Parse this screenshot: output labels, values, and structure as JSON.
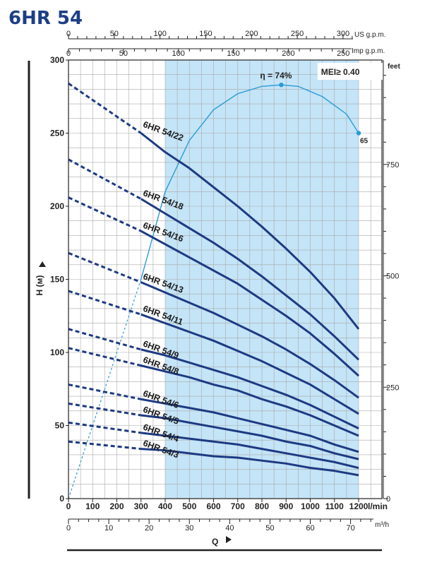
{
  "chart_data": {
    "type": "line",
    "title": "6HR 54",
    "ylabel": "H (м)",
    "xlabel": "Q",
    "x_unit": "l/min",
    "x_unit_m3h": "m³/h",
    "x_unit_usgpm": "US g.p.m.",
    "x_unit_impgpm": "Imp g.p.m.",
    "y_unit_feet": "feet",
    "ylim": [
      0,
      300
    ],
    "xlim": [
      0,
      1250
    ],
    "x_ticks": [
      0,
      100,
      200,
      300,
      400,
      500,
      600,
      700,
      800,
      900,
      1000,
      1100,
      1200
    ],
    "y_ticks": [
      0,
      50,
      100,
      150,
      200,
      250,
      300
    ],
    "feet_ticks": [
      0,
      250,
      500,
      750
    ],
    "usgpm_ticks": [
      0,
      50,
      100,
      150,
      200,
      250,
      300
    ],
    "impgpm_ticks": [
      0,
      50,
      100,
      150,
      200,
      250
    ],
    "m3h_ticks": [
      0,
      10,
      20,
      30,
      40,
      50,
      60,
      70
    ],
    "recommended_range": [
      400,
      1200
    ],
    "mei": "MEI≥ 0.40",
    "efficiency": {
      "label": "η = 74%",
      "end_label": "65",
      "peak_flow": 880,
      "points": [
        [
          0,
          0
        ],
        [
          300,
          150
        ],
        [
          400,
          210
        ],
        [
          500,
          245
        ],
        [
          600,
          266
        ],
        [
          700,
          277
        ],
        [
          800,
          282
        ],
        [
          880,
          283
        ],
        [
          950,
          282
        ],
        [
          1050,
          275
        ],
        [
          1150,
          263
        ],
        [
          1200,
          250
        ]
      ]
    },
    "series": [
      {
        "name": "6HR 54/22",
        "label_flow": 300,
        "label_head": 252,
        "points": [
          [
            0,
            284
          ],
          [
            300,
            250
          ],
          [
            400,
            237
          ],
          [
            500,
            226
          ],
          [
            600,
            213
          ],
          [
            700,
            200
          ],
          [
            800,
            186
          ],
          [
            900,
            171
          ],
          [
            1000,
            155
          ],
          [
            1100,
            137
          ],
          [
            1200,
            116
          ]
        ]
      },
      {
        "name": "6HR 54/18",
        "label_flow": 300,
        "label_head": 205,
        "points": [
          [
            0,
            232
          ],
          [
            300,
            205
          ],
          [
            400,
            195
          ],
          [
            500,
            185
          ],
          [
            600,
            175
          ],
          [
            700,
            164
          ],
          [
            800,
            152
          ],
          [
            900,
            139
          ],
          [
            1000,
            126
          ],
          [
            1100,
            111
          ],
          [
            1200,
            95
          ]
        ]
      },
      {
        "name": "6HR 54/16",
        "label_flow": 300,
        "label_head": 183,
        "points": [
          [
            0,
            206
          ],
          [
            300,
            183
          ],
          [
            400,
            174
          ],
          [
            500,
            165
          ],
          [
            600,
            156
          ],
          [
            700,
            147
          ],
          [
            800,
            136
          ],
          [
            900,
            125
          ],
          [
            1000,
            113
          ],
          [
            1100,
            99
          ],
          [
            1200,
            84
          ]
        ]
      },
      {
        "name": "6HR 54/13",
        "label_flow": 300,
        "label_head": 148,
        "points": [
          [
            0,
            168
          ],
          [
            300,
            148
          ],
          [
            400,
            141
          ],
          [
            500,
            134
          ],
          [
            600,
            127
          ],
          [
            700,
            119
          ],
          [
            800,
            111
          ],
          [
            900,
            102
          ],
          [
            1000,
            92
          ],
          [
            1100,
            81
          ],
          [
            1200,
            69
          ]
        ]
      },
      {
        "name": "6HR 54/11",
        "label_flow": 300,
        "label_head": 126,
        "points": [
          [
            0,
            142
          ],
          [
            300,
            126
          ],
          [
            400,
            120
          ],
          [
            500,
            114
          ],
          [
            600,
            108
          ],
          [
            700,
            101
          ],
          [
            800,
            94
          ],
          [
            900,
            86
          ],
          [
            1000,
            78
          ],
          [
            1100,
            68
          ],
          [
            1200,
            58
          ]
        ]
      },
      {
        "name": "6HR 54/9",
        "label_flow": 300,
        "label_head": 102,
        "points": [
          [
            0,
            116
          ],
          [
            300,
            102
          ],
          [
            400,
            98
          ],
          [
            500,
            93
          ],
          [
            600,
            88
          ],
          [
            700,
            83
          ],
          [
            800,
            77
          ],
          [
            900,
            71
          ],
          [
            1000,
            64
          ],
          [
            1100,
            56
          ],
          [
            1200,
            48
          ]
        ]
      },
      {
        "name": "6HR 54/8",
        "label_flow": 300,
        "label_head": 91,
        "points": [
          [
            0,
            103
          ],
          [
            300,
            91
          ],
          [
            400,
            87
          ],
          [
            500,
            83
          ],
          [
            600,
            78
          ],
          [
            700,
            74
          ],
          [
            800,
            68
          ],
          [
            900,
            63
          ],
          [
            1000,
            57
          ],
          [
            1100,
            50
          ],
          [
            1200,
            43
          ]
        ]
      },
      {
        "name": "6HR 54/6",
        "label_flow": 300,
        "label_head": 68,
        "points": [
          [
            0,
            78
          ],
          [
            300,
            68
          ],
          [
            400,
            65
          ],
          [
            500,
            62
          ],
          [
            600,
            59
          ],
          [
            700,
            55
          ],
          [
            800,
            51
          ],
          [
            900,
            47
          ],
          [
            1000,
            43
          ],
          [
            1100,
            37
          ],
          [
            1200,
            32
          ]
        ]
      },
      {
        "name": "6HR 54/5",
        "label_flow": 300,
        "label_head": 57,
        "points": [
          [
            0,
            65
          ],
          [
            300,
            57
          ],
          [
            400,
            55
          ],
          [
            500,
            52
          ],
          [
            600,
            49
          ],
          [
            700,
            46
          ],
          [
            800,
            43
          ],
          [
            900,
            39
          ],
          [
            1000,
            36
          ],
          [
            1100,
            31
          ],
          [
            1200,
            27
          ]
        ]
      },
      {
        "name": "6HR 54/4",
        "label_flow": 300,
        "label_head": 45,
        "points": [
          [
            0,
            52
          ],
          [
            300,
            45
          ],
          [
            400,
            43
          ],
          [
            500,
            41
          ],
          [
            600,
            39
          ],
          [
            700,
            37
          ],
          [
            800,
            34
          ],
          [
            900,
            31
          ],
          [
            1000,
            28
          ],
          [
            1100,
            25
          ],
          [
            1200,
            21
          ]
        ]
      },
      {
        "name": "6HR 54/3",
        "label_flow": 300,
        "label_head": 34,
        "points": [
          [
            0,
            39
          ],
          [
            300,
            34
          ],
          [
            400,
            33
          ],
          [
            500,
            31
          ],
          [
            600,
            29
          ],
          [
            700,
            28
          ],
          [
            800,
            26
          ],
          [
            900,
            24
          ],
          [
            1000,
            21
          ],
          [
            1100,
            19
          ],
          [
            1200,
            16
          ]
        ]
      }
    ]
  }
}
